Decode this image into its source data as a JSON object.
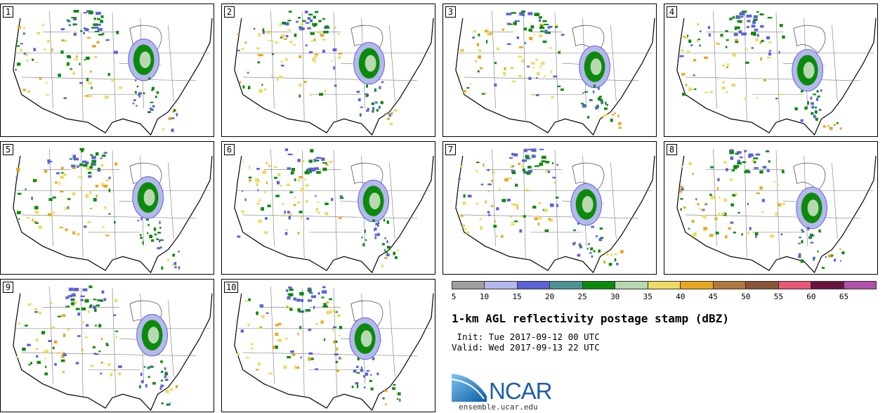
{
  "panels": [
    {
      "label": "1"
    },
    {
      "label": "2"
    },
    {
      "label": "3"
    },
    {
      "label": "4"
    },
    {
      "label": "5"
    },
    {
      "label": "6"
    },
    {
      "label": "7"
    },
    {
      "label": "8"
    },
    {
      "label": "9"
    },
    {
      "label": "10"
    }
  ],
  "colorbar": {
    "colors": [
      "#a0a0a0",
      "#b4b8ec",
      "#5b63d6",
      "#4e9393",
      "#0c8a0c",
      "#b8d8b2",
      "#eedb62",
      "#e8a81e",
      "#b0783c",
      "#8a5436",
      "#ea5878",
      "#6c1440",
      "#b050a8"
    ],
    "ticks": [
      "5",
      "10",
      "15",
      "20",
      "25",
      "30",
      "35",
      "40",
      "45",
      "50",
      "55",
      "60",
      "65"
    ]
  },
  "title": "1-km AGL reflectivity postage stamp (dBZ)",
  "init": " Init: Tue 2017-09-12 00 UTC",
  "valid": "Valid: Wed 2017-09-13 22 UTC",
  "logo": {
    "text": "NCAR",
    "site": "ensemble.ucar.edu"
  }
}
